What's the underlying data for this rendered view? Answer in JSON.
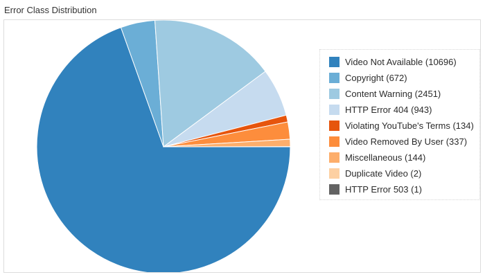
{
  "chart_title": "Error Class Distribution",
  "chart_data": {
    "type": "pie",
    "title": "Error Class Distribution",
    "legend_position": "right",
    "slices": [
      {
        "label": "Video Not Available (10696)",
        "category": "Video Not Available",
        "value": 10696,
        "color": "#3182bd"
      },
      {
        "label": "Copyright (672)",
        "category": "Copyright",
        "value": 672,
        "color": "#6baed6"
      },
      {
        "label": "Content Warning (2451)",
        "category": "Content Warning",
        "value": 2451,
        "color": "#9ecae1"
      },
      {
        "label": "HTTP Error 404 (943)",
        "category": "HTTP Error 404",
        "value": 943,
        "color": "#c6dbef"
      },
      {
        "label": "Violating YouTube's Terms (134)",
        "category": "Violating YouTube's Terms",
        "value": 134,
        "color": "#e6550d"
      },
      {
        "label": "Video Removed By User (337)",
        "category": "Video Removed By User",
        "value": 337,
        "color": "#fd8d3c"
      },
      {
        "label": "Miscellaneous (144)",
        "category": "Miscellaneous",
        "value": 144,
        "color": "#fdae6b"
      },
      {
        "label": "Duplicate Video (2)",
        "category": "Duplicate Video",
        "value": 2,
        "color": "#fdd0a2"
      },
      {
        "label": "HTTP Error 503 (1)",
        "category": "HTTP Error 503",
        "value": 1,
        "color": "#636363"
      }
    ]
  }
}
